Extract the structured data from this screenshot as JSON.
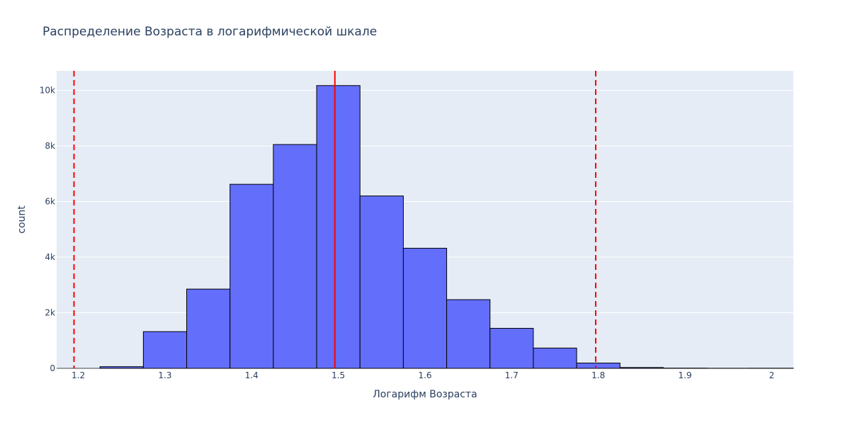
{
  "chart_data": {
    "type": "bar",
    "title": "Распределение Возраста в логарифмической шкале",
    "xlabel": "Логарифм Возраста",
    "ylabel": "count",
    "xlim": [
      1.175,
      2.025
    ],
    "ylim": [
      0,
      10700
    ],
    "bin_width": 0.05,
    "bins": [
      {
        "start": 1.225,
        "count": 60
      },
      {
        "start": 1.275,
        "count": 1320
      },
      {
        "start": 1.325,
        "count": 2850
      },
      {
        "start": 1.375,
        "count": 6620
      },
      {
        "start": 1.425,
        "count": 8050
      },
      {
        "start": 1.475,
        "count": 10170
      },
      {
        "start": 1.525,
        "count": 6200
      },
      {
        "start": 1.575,
        "count": 4320
      },
      {
        "start": 1.625,
        "count": 2470
      },
      {
        "start": 1.675,
        "count": 1440
      },
      {
        "start": 1.725,
        "count": 730
      },
      {
        "start": 1.775,
        "count": 190
      },
      {
        "start": 1.825,
        "count": 30
      },
      {
        "start": 1.875,
        "count": 8
      },
      {
        "start": 1.925,
        "count": 3
      },
      {
        "start": 1.975,
        "count": 5
      }
    ],
    "x_ticks": [
      {
        "value": 1.2,
        "label": "1.2"
      },
      {
        "value": 1.3,
        "label": "1.3"
      },
      {
        "value": 1.4,
        "label": "1.4"
      },
      {
        "value": 1.5,
        "label": "1.5"
      },
      {
        "value": 1.6,
        "label": "1.6"
      },
      {
        "value": 1.7,
        "label": "1.7"
      },
      {
        "value": 1.8,
        "label": "1.8"
      },
      {
        "value": 1.9,
        "label": "1.9"
      },
      {
        "value": 2.0,
        "label": "2"
      }
    ],
    "y_ticks": [
      {
        "value": 0,
        "label": "0"
      },
      {
        "value": 2000,
        "label": "2k"
      },
      {
        "value": 4000,
        "label": "4k"
      },
      {
        "value": 6000,
        "label": "6k"
      },
      {
        "value": 8000,
        "label": "8k"
      },
      {
        "value": 10000,
        "label": "10k"
      }
    ],
    "reference_lines": [
      {
        "name": "lower-bound",
        "x": 1.195,
        "style": "dashed",
        "color": "#ff0000"
      },
      {
        "name": "mean",
        "x": 1.496,
        "style": "solid",
        "color": "#ff0000"
      },
      {
        "name": "upper-bound",
        "x": 1.797,
        "style": "dashed",
        "color": "#ff0000"
      }
    ],
    "grid": true,
    "colors": {
      "bar_fill": "#636efa",
      "bar_edge": "#000000",
      "plot_background": "#e5ecf6",
      "grid": "#ffffff",
      "text": "#2a3f5f"
    }
  }
}
